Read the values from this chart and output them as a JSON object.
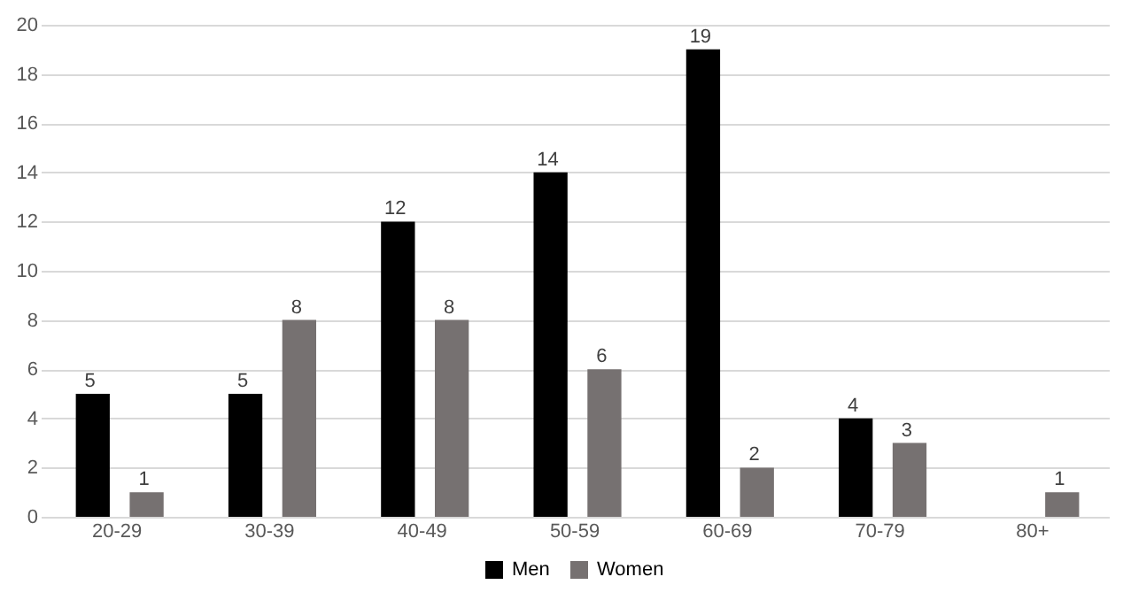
{
  "chart_data": {
    "type": "bar",
    "categories": [
      "20-29",
      "30-39",
      "40-49",
      "50-59",
      "60-69",
      "70-79",
      "80+"
    ],
    "series": [
      {
        "name": "Men",
        "color": "#000000",
        "values": [
          5,
          5,
          12,
          14,
          19,
          4,
          null
        ]
      },
      {
        "name": "Women",
        "color": "#767171",
        "values": [
          1,
          8,
          8,
          6,
          2,
          3,
          1
        ]
      }
    ],
    "ylim": [
      0,
      20
    ],
    "yticks": [
      0,
      2,
      4,
      6,
      8,
      10,
      12,
      14,
      16,
      18,
      20
    ],
    "grid": "y",
    "legend": "bottom",
    "data_labels": true
  }
}
